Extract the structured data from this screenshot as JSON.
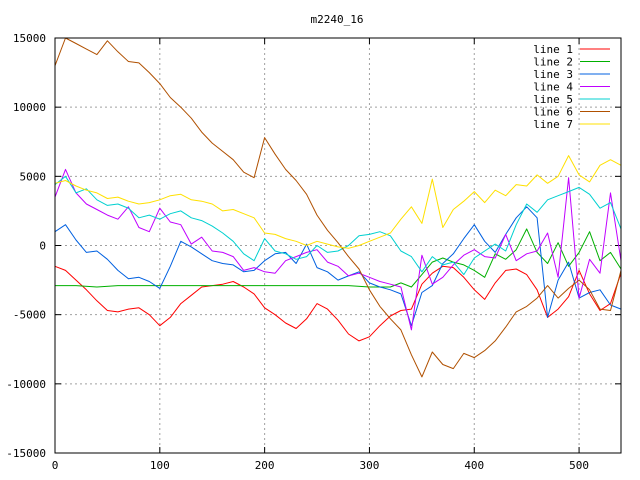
{
  "chart_data": {
    "type": "line",
    "title": "m2240_16",
    "xlabel": "",
    "ylabel": "",
    "xlim": [
      0,
      540
    ],
    "ylim": [
      -15000,
      15000
    ],
    "xticks": [
      0,
      100,
      200,
      300,
      400,
      500
    ],
    "yticks": [
      -15000,
      -10000,
      -5000,
      0,
      5000,
      10000,
      15000
    ],
    "grid": true,
    "legend_position": "top-right",
    "series": [
      {
        "name": "line 1",
        "color": "#ff0000",
        "x": [
          0,
          10,
          20,
          30,
          40,
          50,
          60,
          70,
          80,
          90,
          100,
          110,
          120,
          130,
          140,
          150,
          160,
          170,
          180,
          190,
          200,
          210,
          220,
          230,
          240,
          250,
          260,
          270,
          280,
          290,
          300,
          310,
          320,
          330,
          340,
          350,
          360,
          370,
          380,
          390,
          400,
          410,
          420,
          430,
          440,
          450,
          460,
          470,
          480,
          490,
          500,
          510,
          520,
          530,
          540
        ],
        "y": [
          -1500,
          -1800,
          -2500,
          -3200,
          -4000,
          -4700,
          -4800,
          -4600,
          -4500,
          -5000,
          -5800,
          -5200,
          -4200,
          -3600,
          -3000,
          -2900,
          -2800,
          -2600,
          -3000,
          -3500,
          -4500,
          -5000,
          -5600,
          -6000,
          -5300,
          -4200,
          -4600,
          -5400,
          -6400,
          -6900,
          -6600,
          -5800,
          -5100,
          -4700,
          -4600,
          -2800,
          -2000,
          -1500,
          -1600,
          -2300,
          -3200,
          -3900,
          -2700,
          -1800,
          -1700,
          -2100,
          -3200,
          -5200,
          -4600,
          -3700,
          -1800,
          -3500,
          -4700,
          -4200,
          -2000
        ]
      },
      {
        "name": "line 2",
        "color": "#00b000",
        "x": [
          0,
          20,
          40,
          60,
          80,
          100,
          120,
          140,
          160,
          180,
          200,
          220,
          240,
          260,
          280,
          300,
          320,
          330,
          340,
          350,
          360,
          370,
          380,
          390,
          400,
          410,
          420,
          430,
          440,
          450,
          460,
          470,
          480,
          490,
          500,
          510,
          520,
          530,
          540
        ],
        "y": [
          -2900,
          -2900,
          -3000,
          -2900,
          -2900,
          -2900,
          -2900,
          -2900,
          -2900,
          -2900,
          -2900,
          -2900,
          -2900,
          -2900,
          -2900,
          -3000,
          -3000,
          -2700,
          -3000,
          -2100,
          -1200,
          -900,
          -1200,
          -1400,
          -1800,
          -2300,
          -600,
          -1000,
          -300,
          1200,
          -500,
          -1300,
          200,
          -1500,
          -500,
          1000,
          -1100,
          -500,
          -1700
        ]
      },
      {
        "name": "line 3",
        "color": "#0060e0",
        "x": [
          0,
          10,
          20,
          30,
          40,
          50,
          60,
          70,
          80,
          90,
          100,
          110,
          120,
          130,
          140,
          150,
          160,
          170,
          180,
          190,
          200,
          210,
          220,
          230,
          240,
          250,
          260,
          270,
          280,
          290,
          300,
          310,
          320,
          330,
          340,
          350,
          360,
          370,
          380,
          390,
          400,
          410,
          420,
          430,
          440,
          450,
          460,
          470,
          480,
          490,
          500,
          510,
          520,
          530,
          540
        ],
        "y": [
          1000,
          1500,
          400,
          -500,
          -400,
          -1000,
          -1800,
          -2400,
          -2300,
          -2600,
          -3100,
          -1500,
          300,
          -100,
          -600,
          -1100,
          -1300,
          -1400,
          -1900,
          -1800,
          -1100,
          -600,
          -500,
          -1300,
          100,
          -1600,
          -1900,
          -2500,
          -2200,
          -1900,
          -2700,
          -3000,
          -3200,
          -3500,
          -5800,
          -3400,
          -2900,
          -1300,
          -600,
          500,
          1500,
          300,
          -500,
          800,
          2000,
          2800,
          2000,
          -5200,
          -2500,
          -1200,
          -3800,
          -3400,
          -3200,
          -4300,
          -4600
        ]
      },
      {
        "name": "line 4",
        "color": "#c000ff",
        "x": [
          0,
          10,
          20,
          30,
          40,
          50,
          60,
          70,
          80,
          90,
          100,
          110,
          120,
          130,
          140,
          150,
          160,
          170,
          180,
          190,
          200,
          210,
          220,
          230,
          240,
          250,
          260,
          270,
          280,
          290,
          300,
          310,
          320,
          330,
          340,
          350,
          360,
          370,
          380,
          390,
          400,
          410,
          420,
          430,
          440,
          450,
          460,
          470,
          480,
          490,
          500,
          510,
          520,
          530,
          540
        ],
        "y": [
          3500,
          5500,
          3800,
          3000,
          2600,
          2200,
          1900,
          2800,
          1300,
          1000,
          2700,
          1700,
          1500,
          100,
          600,
          -400,
          -500,
          -800,
          -1800,
          -1600,
          -1900,
          -2000,
          -1100,
          -800,
          -500,
          -300,
          -1200,
          -1500,
          -2200,
          -2000,
          -2300,
          -2600,
          -2800,
          -3000,
          -6100,
          -700,
          -2800,
          -2300,
          -1400,
          -700,
          -300,
          -800,
          -900,
          800,
          -1100,
          -600,
          -400,
          900,
          -2300,
          4900,
          -3800,
          -1000,
          -2000,
          3800,
          -1100
        ]
      },
      {
        "name": "line 5",
        "color": "#00d0d0",
        "x": [
          0,
          10,
          20,
          30,
          40,
          50,
          60,
          70,
          80,
          90,
          100,
          110,
          120,
          130,
          140,
          150,
          160,
          170,
          180,
          190,
          200,
          210,
          220,
          230,
          240,
          250,
          260,
          270,
          280,
          290,
          300,
          310,
          320,
          330,
          340,
          350,
          360,
          370,
          380,
          390,
          400,
          410,
          420,
          430,
          440,
          450,
          460,
          470,
          480,
          490,
          500,
          510,
          520,
          530,
          540
        ],
        "y": [
          4400,
          5000,
          3800,
          4100,
          3300,
          2900,
          3000,
          2700,
          2000,
          2200,
          1900,
          2300,
          2500,
          2000,
          1800,
          1400,
          900,
          300,
          -600,
          -1100,
          500,
          -400,
          -600,
          -1000,
          -800,
          0,
          -500,
          -400,
          0,
          700,
          800,
          1000,
          700,
          -400,
          -800,
          -1900,
          -800,
          -1400,
          -1200,
          -2100,
          -900,
          -400,
          100,
          -400,
          1500,
          3000,
          2400,
          3300,
          3600,
          3900,
          4200,
          3700,
          2700,
          3100,
          1200
        ]
      },
      {
        "name": "line 6",
        "color": "#b05000",
        "x": [
          0,
          10,
          20,
          30,
          40,
          50,
          60,
          70,
          80,
          90,
          100,
          110,
          120,
          130,
          140,
          150,
          160,
          170,
          180,
          190,
          200,
          210,
          220,
          230,
          240,
          250,
          260,
          270,
          280,
          290,
          300,
          310,
          320,
          330,
          340,
          350,
          360,
          370,
          380,
          390,
          400,
          410,
          420,
          430,
          440,
          450,
          460,
          470,
          480,
          490,
          500,
          510,
          520,
          530,
          540
        ],
        "y": [
          13000,
          15000,
          14600,
          14200,
          13800,
          14800,
          14000,
          13300,
          13200,
          12500,
          11700,
          10700,
          10000,
          9200,
          8200,
          7400,
          6800,
          6200,
          5300,
          4900,
          7800,
          6600,
          5500,
          4700,
          3700,
          2200,
          1100,
          200,
          -800,
          -1700,
          -3200,
          -4400,
          -5300,
          -6100,
          -7900,
          -9500,
          -7700,
          -8600,
          -8900,
          -7800,
          -8100,
          -7600,
          -6900,
          -5900,
          -4800,
          -4400,
          -3800,
          -2900,
          -3800,
          -3100,
          -2500,
          -3200,
          -4600,
          -4700,
          -1800
        ]
      },
      {
        "name": "line 7",
        "color": "#ffe000",
        "x": [
          0,
          10,
          20,
          30,
          40,
          50,
          60,
          70,
          80,
          90,
          100,
          110,
          120,
          130,
          140,
          150,
          160,
          170,
          180,
          190,
          200,
          210,
          220,
          230,
          240,
          250,
          260,
          270,
          280,
          290,
          300,
          310,
          320,
          330,
          340,
          350,
          360,
          370,
          380,
          390,
          400,
          410,
          420,
          430,
          440,
          450,
          460,
          470,
          480,
          490,
          500,
          510,
          520,
          530,
          540
        ],
        "y": [
          4500,
          4700,
          4300,
          4000,
          3800,
          3400,
          3500,
          3200,
          3000,
          3100,
          3300,
          3600,
          3700,
          3300,
          3200,
          3000,
          2500,
          2600,
          2300,
          2000,
          900,
          800,
          500,
          300,
          0,
          300,
          100,
          -100,
          -200,
          0,
          300,
          600,
          900,
          1900,
          2800,
          1600,
          4800,
          1300,
          2600,
          3200,
          3900,
          3100,
          4000,
          3600,
          4400,
          4300,
          5100,
          4500,
          5000,
          6500,
          5100,
          4600,
          5800,
          6200,
          5800
        ]
      }
    ]
  }
}
